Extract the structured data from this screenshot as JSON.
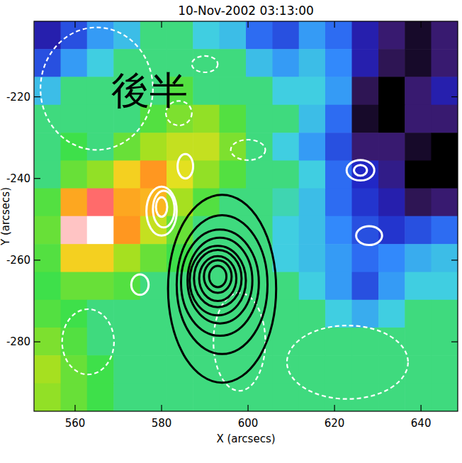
{
  "chart_data": {
    "type": "heatmap",
    "title": "10-Nov-2002 03:13:00",
    "annotation": "後半",
    "x_label": "X (arcsecs)",
    "y_label": "Y (arcsecs)",
    "xlim": [
      550.5,
      648.5
    ],
    "ylim": [
      -297,
      -201.5
    ],
    "xticks": [
      560,
      580,
      600,
      620,
      640
    ],
    "yticks": [
      -280,
      -260,
      -240,
      -220
    ],
    "x": [
      553.6,
      559.7,
      565.8,
      572.0,
      578.1,
      584.2,
      590.3,
      596.4,
      602.6,
      608.7,
      614.8,
      620.9,
      627.1,
      633.2,
      639.3,
      645.4
    ],
    "y": [
      -204.9,
      -211.7,
      -218.5,
      -225.4,
      -232.2,
      -239.0,
      -245.8,
      -252.6,
      -259.5,
      -266.3,
      -273.1,
      -279.9,
      -286.7,
      -293.6
    ],
    "cells": [
      [
        -1.5,
        -1,
        -0.5,
        -0.3,
        0,
        0,
        -0.2,
        -0.3,
        -0.8,
        -1,
        -0.5,
        -0.8,
        -1.5,
        -2,
        -2.5,
        -2
      ],
      [
        -1,
        -0.5,
        -0.2,
        0,
        0,
        0,
        0,
        0,
        -0.3,
        -0.5,
        -0.3,
        -0.6,
        -1.5,
        -2.2,
        -2.5,
        -2
      ],
      [
        -0.3,
        0,
        0,
        0,
        0,
        0.2,
        0,
        0,
        0,
        -0.2,
        -0.2,
        -0.5,
        -2.2,
        -2.8,
        -2,
        -1.5
      ],
      [
        0,
        0,
        0,
        0,
        0.2,
        0.4,
        0.5,
        0.2,
        0,
        0,
        -0.3,
        -0.8,
        -2.5,
        -2.8,
        -2,
        -2
      ],
      [
        0,
        0.1,
        0,
        0.3,
        0.6,
        0.8,
        0.8,
        0.4,
        0,
        -0.2,
        -0.5,
        -1,
        -2,
        -2,
        -2.5,
        -2.8
      ],
      [
        0,
        0.3,
        0.5,
        1.2,
        1.6,
        1.0,
        0.5,
        0.2,
        0,
        0,
        -0.2,
        -0.8,
        -1.3,
        -1.8,
        -2.8,
        -2.8
      ],
      [
        0.2,
        1.5,
        2.5,
        1.5,
        1.4,
        0.6,
        0.2,
        0,
        0,
        -0.1,
        -0.3,
        -0.8,
        -1.2,
        -1.5,
        -2.2,
        -2
      ],
      [
        0.3,
        2.8,
        3,
        1.6,
        0.8,
        0.3,
        0,
        0,
        0,
        -0.2,
        -0.3,
        -0.6,
        -1,
        -1.2,
        -1,
        -0.8
      ],
      [
        0.2,
        1.2,
        1.2,
        0.6,
        0.3,
        0.1,
        0,
        0,
        0,
        -0.2,
        -0.3,
        -0.5,
        -0.8,
        -0.6,
        -0.4,
        -0.3
      ],
      [
        0.1,
        0.3,
        0.3,
        0.2,
        0,
        0,
        0,
        0,
        0,
        0,
        -0.2,
        -0.5,
        -1,
        -0.5,
        -0.2,
        -0.2
      ],
      [
        0.2,
        0.1,
        0,
        0,
        0,
        0,
        0,
        0,
        0,
        0,
        0,
        -0.2,
        -0.4,
        -0.2,
        0,
        0
      ],
      [
        0.4,
        0.2,
        0,
        0,
        0,
        0,
        0,
        0,
        0,
        0,
        0,
        0,
        0,
        0,
        0,
        0
      ],
      [
        0.6,
        0.3,
        0.1,
        0,
        0,
        0,
        0,
        0,
        0,
        0,
        0,
        0,
        0,
        0,
        0,
        0
      ],
      [
        0.5,
        0.3,
        0.1,
        0,
        0,
        0,
        0,
        0,
        0,
        0,
        0,
        0,
        0,
        0,
        0,
        0
      ]
    ],
    "contours": [
      {
        "x": 565,
        "y": -218,
        "rx": 13,
        "ry": 15,
        "color": "#ffffff",
        "line_style": "dashed"
      },
      {
        "x": 584,
        "y": -224,
        "rx": 3,
        "ry": 3,
        "color": "#ffffff",
        "line_style": "dashed"
      },
      {
        "x": 590,
        "y": -212,
        "rx": 3,
        "ry": 2,
        "color": "#ffffff",
        "line_style": "dashed"
      },
      {
        "x": 600,
        "y": -233,
        "rx": 4,
        "ry": 2.5,
        "color": "#ffffff",
        "line_style": "dashed"
      },
      {
        "x": 623,
        "y": -285,
        "rx": 14,
        "ry": 9,
        "color": "#ffffff",
        "line_style": "dashed"
      },
      {
        "x": 598,
        "y": -280,
        "rx": 6,
        "ry": 12,
        "color": "#ffffff",
        "line_style": "dashed"
      },
      {
        "x": 563,
        "y": -280,
        "rx": 6,
        "ry": 8,
        "color": "#ffffff",
        "line_style": "dashed"
      },
      {
        "x": 594,
        "y": -267,
        "rx": 12.5,
        "ry": 23,
        "color": "#000000",
        "line_style": "solid"
      },
      {
        "x": 594,
        "y": -266,
        "rx": 10.5,
        "ry": 17,
        "color": "#000000",
        "line_style": "solid"
      },
      {
        "x": 593.5,
        "y": -265.5,
        "rx": 9,
        "ry": 13,
        "color": "#000000",
        "line_style": "solid"
      },
      {
        "x": 593.5,
        "y": -265,
        "rx": 7.5,
        "ry": 10.5,
        "color": "#000000",
        "line_style": "solid"
      },
      {
        "x": 593,
        "y": -265,
        "rx": 6.5,
        "ry": 8.5,
        "color": "#000000",
        "line_style": "solid"
      },
      {
        "x": 593,
        "y": -264.5,
        "rx": 5.5,
        "ry": 7,
        "color": "#000000",
        "line_style": "solid"
      },
      {
        "x": 593,
        "y": -264.5,
        "rx": 4.3,
        "ry": 5.5,
        "color": "#000000",
        "line_style": "solid"
      },
      {
        "x": 593,
        "y": -264,
        "rx": 3.2,
        "ry": 4,
        "color": "#000000",
        "line_style": "solid"
      },
      {
        "x": 593,
        "y": -264,
        "rx": 2,
        "ry": 2.6,
        "color": "#000000",
        "line_style": "solid"
      },
      {
        "x": 580,
        "y": -248,
        "rx": 3.5,
        "ry": 6,
        "color": "#ffffff",
        "line_style": "solid"
      },
      {
        "x": 580.5,
        "y": -247.5,
        "rx": 2.5,
        "ry": 4.5,
        "color": "#ffffff",
        "line_style": "solid"
      },
      {
        "x": 580,
        "y": -247,
        "rx": 1.3,
        "ry": 2.4,
        "color": "#ffffff",
        "line_style": "solid"
      },
      {
        "x": 585.5,
        "y": -237,
        "rx": 1.8,
        "ry": 3,
        "color": "#ffffff",
        "line_style": "solid"
      },
      {
        "x": 575,
        "y": -266,
        "rx": 2,
        "ry": 2.5,
        "color": "#ffffff",
        "line_style": "solid"
      },
      {
        "x": 626,
        "y": -238,
        "rx": 3.2,
        "ry": 2.5,
        "color": "#ffffff",
        "line_style": "solid"
      },
      {
        "x": 626,
        "y": -238,
        "rx": 1.5,
        "ry": 1.3,
        "color": "#ffffff",
        "line_style": "solid"
      },
      {
        "x": 628,
        "y": -254,
        "rx": 3,
        "ry": 2.3,
        "color": "#ffffff",
        "line_style": "solid"
      }
    ]
  }
}
